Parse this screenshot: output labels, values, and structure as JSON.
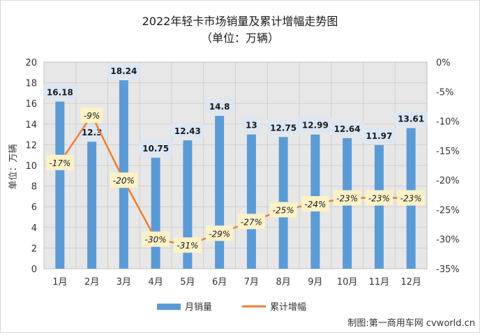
{
  "chart_data": {
    "type": "bar+line",
    "title": "2022年轻卡市场销量及累计增幅走势图",
    "subtitle": "（单位：万辆）",
    "ylabel": "单位：万辆",
    "categories": [
      "1月",
      "2月",
      "3月",
      "4月",
      "5月",
      "6月",
      "7月",
      "8月",
      "9月",
      "10月",
      "11月",
      "12月"
    ],
    "series": [
      {
        "name": "月销量",
        "kind": "bar",
        "axis": "left",
        "color": "#5b9bd5",
        "values": [
          16.18,
          12.3,
          18.24,
          10.75,
          12.43,
          14.8,
          13,
          12.75,
          12.99,
          12.64,
          11.97,
          13.61
        ],
        "labels": [
          "16.18",
          "12.3",
          "18.24",
          "10.75",
          "12.43",
          "14.8",
          "13",
          "12.75",
          "12.99",
          "12.64",
          "11.97",
          "13.61"
        ]
      },
      {
        "name": "累计增幅",
        "kind": "line",
        "axis": "right",
        "color": "#ed7d31",
        "values": [
          -17,
          -9,
          -20,
          -30,
          -31,
          -29,
          -27,
          -25,
          -24,
          -23,
          -23,
          -23
        ],
        "labels": [
          "-17%",
          "-9%",
          "-20%",
          "-30%",
          "-31%",
          "-29%",
          "-27%",
          "-25%",
          "-24%",
          "-23%",
          "-23%",
          "-23%"
        ]
      }
    ],
    "y_left": {
      "range": [
        0,
        20
      ],
      "ticks": [
        "0",
        "2",
        "4",
        "6",
        "8",
        "10",
        "12",
        "14",
        "16",
        "18",
        "20"
      ]
    },
    "y_right": {
      "range": [
        -35,
        0
      ],
      "ticks": [
        "0%",
        "-5%",
        "-10%",
        "-15%",
        "-20%",
        "-25%",
        "-30%",
        "-35%"
      ]
    },
    "grid": true,
    "legend_position": "bottom",
    "source": "制图:第一商用车网 cvworld.cn",
    "colors": {
      "plot_background": "#e7e7e7",
      "bar_label_background": "#dbe7f5",
      "line_label_background": "#fdf1c7"
    }
  }
}
